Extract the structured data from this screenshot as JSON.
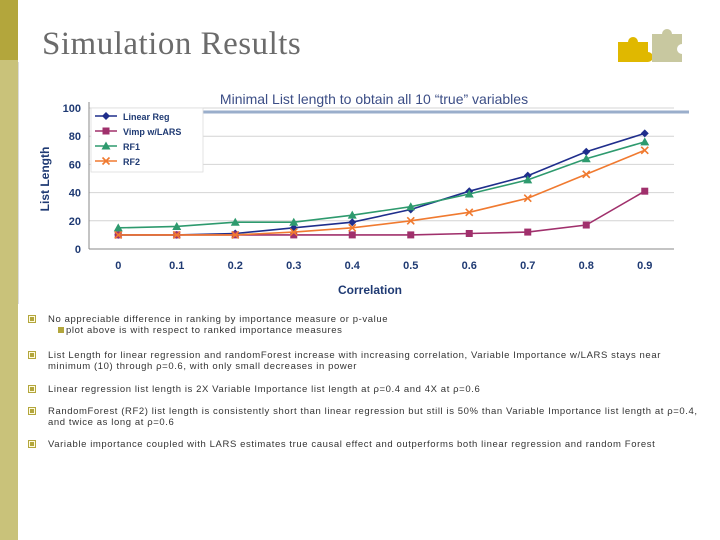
{
  "slide": {
    "title": "Simulation Results"
  },
  "colors": {
    "accent": "#b3a63c",
    "sidebar": "#c9c27a"
  },
  "bullets": [
    {
      "text": "No appreciable difference in ranking by importance measure or p-value",
      "sub": "plot above is with respect to ranked importance measures"
    },
    {
      "text": "List Length for linear regression and randomForest increase with increasing correlation, Variable Importance w/LARS stays near minimum (10) through ρ=0.6, with only small decreases in power"
    },
    {
      "text": "Linear regression list length is 2X Variable Importance list length at ρ=0.4 and 4X at ρ=0.6"
    },
    {
      "text": "RandomForest (RF2) list length is consistently short than linear regression but still is 50% than Variable Importance list length at ρ=0.4, and twice as long at ρ=0.6"
    },
    {
      "text": "Variable importance coupled with LARS estimates true causal effect and outperforms both linear regression and random Forest"
    }
  ],
  "chart_data": {
    "type": "line",
    "title": "Minimal List length to obtain all 10 “true” variables",
    "xlabel": "Correlation",
    "ylabel": "List Length",
    "x": [
      "0",
      "0.1",
      "0.2",
      "0.3",
      "0.4",
      "0.5",
      "0.6",
      "0.7",
      "0.8",
      "0.9"
    ],
    "yticks": [
      "0",
      "20",
      "40",
      "60",
      "80",
      "100"
    ],
    "ylim": [
      0,
      100
    ],
    "legend_position": "top-left",
    "grid": true,
    "series": [
      {
        "name": "Linear Reg",
        "color": "#1f2e8c",
        "marker": "diamond",
        "values": [
          10,
          10,
          11,
          15,
          19,
          28,
          41,
          52,
          69,
          82
        ]
      },
      {
        "name": "Vimp w/LARS",
        "color": "#a0306c",
        "marker": "square",
        "values": [
          10,
          10,
          10,
          10,
          10,
          10,
          11,
          12,
          17,
          41
        ]
      },
      {
        "name": "RF1",
        "color": "#2e9a6e",
        "marker": "triangle",
        "values": [
          15,
          16,
          19,
          19,
          24,
          30,
          39,
          49,
          64,
          76
        ]
      },
      {
        "name": "RF2",
        "color": "#f07a30",
        "marker": "x",
        "values": [
          10,
          10,
          10,
          12,
          15,
          20,
          26,
          36,
          53,
          70
        ]
      }
    ]
  }
}
